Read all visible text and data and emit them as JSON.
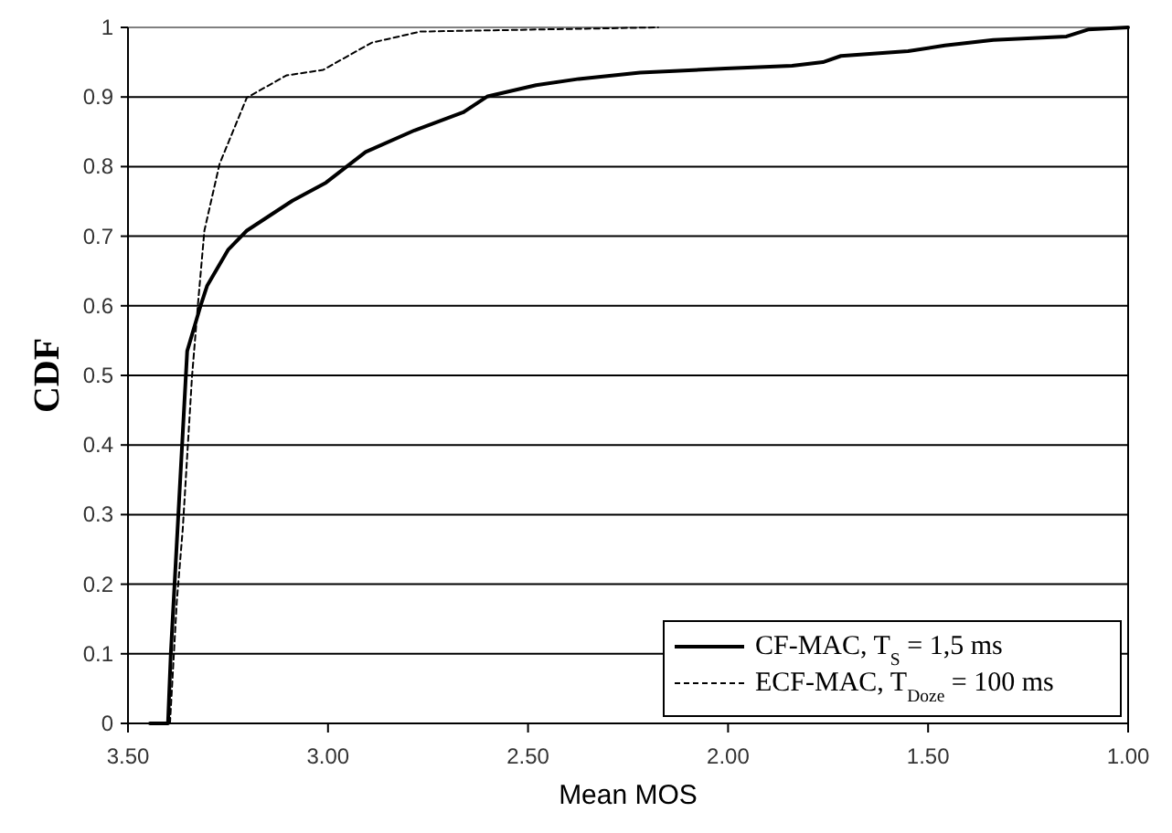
{
  "chart_data": {
    "type": "line",
    "xlabel": "Mean MOS",
    "ylabel": "CDF",
    "xlim": [
      3.5,
      1.0
    ],
    "xticks": [
      {
        "value": 3.5,
        "label": "3.50"
      },
      {
        "value": 3.0,
        "label": "3.00"
      },
      {
        "value": 2.5,
        "label": "2.50"
      },
      {
        "value": 2.0,
        "label": "2.00"
      },
      {
        "value": 1.5,
        "label": "1.50"
      },
      {
        "value": 1.0,
        "label": "1.00"
      }
    ],
    "ylim": [
      0,
      1
    ],
    "yticks": [
      0,
      0.1,
      0.2,
      0.3,
      0.4,
      0.5,
      0.6,
      0.7,
      0.8,
      0.9,
      1
    ],
    "grid": "y",
    "legend": "bottom right",
    "series": [
      {
        "name": "CF-MAC, T$_{S}$ = 1,5 ms",
        "color": "#000000",
        "line_style": "solid",
        "x": [
          3.445,
          3.4,
          3.393,
          3.352,
          3.317,
          3.302,
          3.249,
          3.203,
          3.089,
          3.005,
          2.906,
          2.784,
          2.662,
          2.601,
          2.48,
          2.373,
          2.22,
          2.007,
          1.84,
          1.763,
          1.718,
          1.55,
          1.458,
          1.337,
          1.154,
          1.1,
          1.0
        ],
        "values": [
          0,
          0,
          0.1,
          0.535,
          0.603,
          0.629,
          0.681,
          0.708,
          0.751,
          0.777,
          0.821,
          0.852,
          0.878,
          0.901,
          0.917,
          0.926,
          0.935,
          0.941,
          0.945,
          0.95,
          0.959,
          0.966,
          0.974,
          0.982,
          0.987,
          0.997,
          1.0
        ]
      },
      {
        "name": "ECF-MAC, T$_{Doze}$ = 100 ms",
        "color": "#000000",
        "line_style": "dashed",
        "x": [
          3.395,
          3.378,
          3.363,
          3.34,
          3.325,
          3.309,
          3.271,
          3.203,
          3.104,
          3.012,
          2.891,
          2.769,
          2.175
        ],
        "values": [
          0,
          0.175,
          0.28,
          0.498,
          0.603,
          0.708,
          0.804,
          0.899,
          0.931,
          0.939,
          0.978,
          0.994,
          1.0
        ]
      }
    ]
  }
}
